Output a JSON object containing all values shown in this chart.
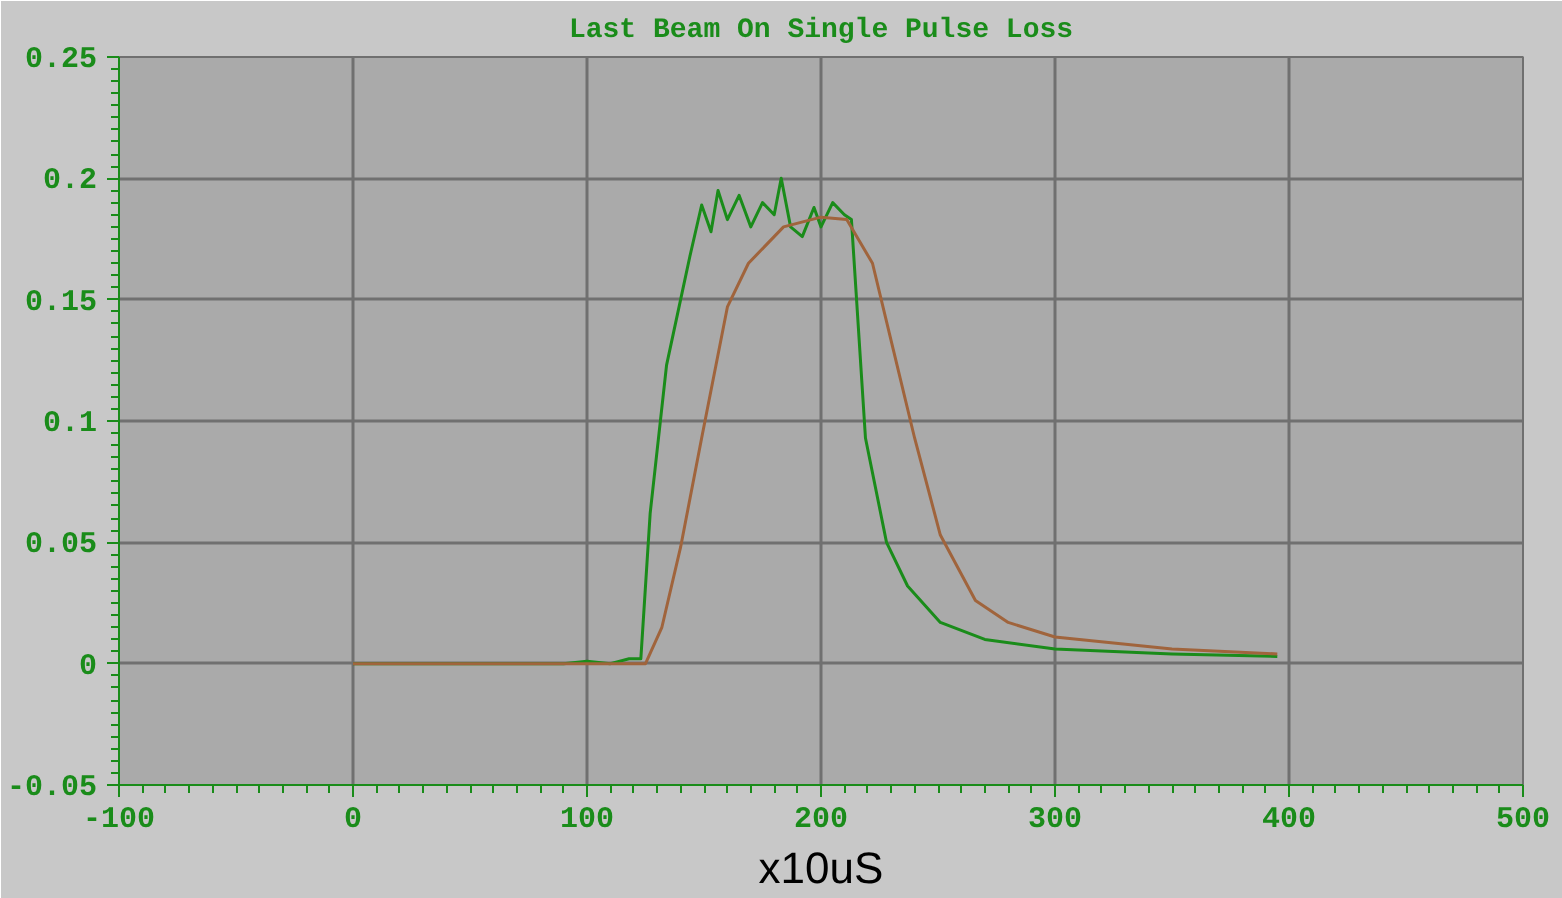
{
  "chart_data": {
    "type": "line",
    "title": "Last Beam On Single Pulse Loss",
    "xlabel": "x10uS",
    "xlim": [
      -100,
      500
    ],
    "ylim": [
      -0.05,
      0.25
    ],
    "xticks": [
      -100,
      0,
      100,
      200,
      300,
      400,
      500
    ],
    "yticks": [
      -0.05,
      0,
      0.05,
      0.1,
      0.15,
      0.2,
      0.25
    ],
    "grid": true,
    "series": [
      {
        "color": "#1a8c1a",
        "x": [
          0,
          90,
          100,
          110,
          118,
          123,
          127,
          134,
          140,
          144,
          149,
          153,
          156,
          160,
          165,
          170,
          175,
          180,
          183,
          187,
          192,
          197,
          200,
          205,
          210,
          213,
          215,
          219,
          228,
          237,
          251,
          270,
          300,
          350,
          395
        ],
        "values": [
          0,
          0,
          0.001,
          0,
          0.002,
          0.002,
          0.062,
          0.123,
          0.15,
          0.168,
          0.189,
          0.178,
          0.195,
          0.183,
          0.193,
          0.18,
          0.19,
          0.185,
          0.2,
          0.18,
          0.176,
          0.188,
          0.18,
          0.19,
          0.185,
          0.183,
          0.153,
          0.093,
          0.05,
          0.032,
          0.017,
          0.01,
          0.006,
          0.004,
          0.003
        ]
      },
      {
        "color": "#a0643c",
        "x": [
          0,
          100,
          125,
          132,
          140,
          149,
          160,
          169,
          184,
          200,
          211,
          222,
          231,
          240,
          251,
          266,
          280,
          300,
          350,
          395
        ],
        "values": [
          0,
          0,
          0,
          0.015,
          0.048,
          0.093,
          0.147,
          0.165,
          0.18,
          0.184,
          0.183,
          0.165,
          0.129,
          0.093,
          0.053,
          0.026,
          0.017,
          0.011,
          0.006,
          0.004
        ]
      }
    ]
  }
}
